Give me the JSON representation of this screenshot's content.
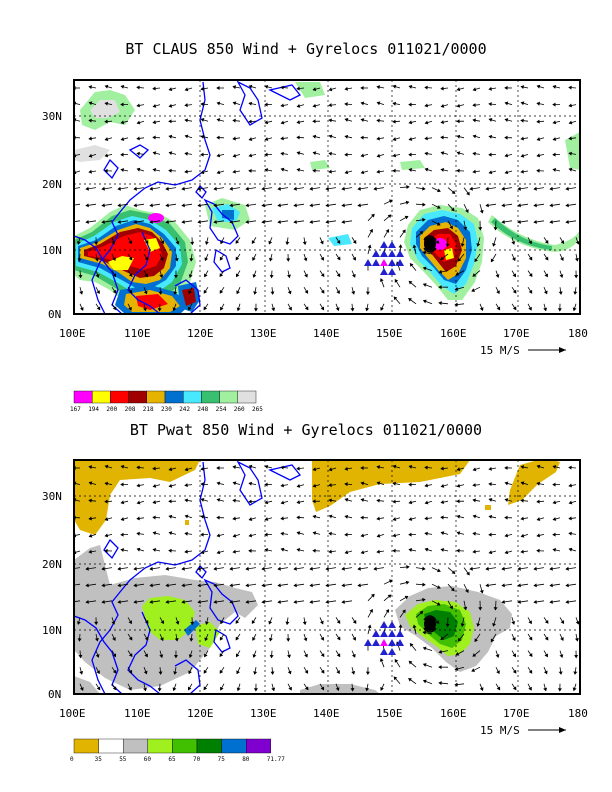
{
  "panels": [
    {
      "title": "BT CLAUS 850 Wind + Gyrelocs 011021/0000",
      "field": "CLAUS brightness temperature",
      "x_ticks": [
        "100E",
        "110E",
        "120E",
        "130E",
        "140E",
        "150E",
        "160E",
        "170E",
        "180"
      ],
      "y_ticks": [
        "0N",
        "10N",
        "20N",
        "30N"
      ],
      "ref_vector_label": "15 M/S",
      "legend": {
        "colors": [
          "#ff00ff",
          "#ffff00",
          "#ff0000",
          "#a00000",
          "#e6b400",
          "#0070d0",
          "#48e8ff",
          "#38c070",
          "#a0f0a0",
          "#e0e0e0"
        ],
        "labels": [
          "167",
          "194",
          "200",
          "208",
          "218",
          "230",
          "242",
          "248",
          "254",
          "260",
          "265"
        ]
      }
    },
    {
      "title": "BT Pwat 850 Wind + Gyrelocs 011021/0000",
      "field": "Precipitable water",
      "x_ticks": [
        "100E",
        "110E",
        "120E",
        "130E",
        "140E",
        "150E",
        "160E",
        "170E",
        "180"
      ],
      "y_ticks": [
        "0N",
        "10N",
        "20N",
        "30N"
      ],
      "ref_vector_label": "15 M/S",
      "legend": {
        "colors": [
          "#e0b400",
          "#ffffff",
          "#c0c0c0",
          "#a0f020",
          "#40c000",
          "#008000",
          "#0070d0",
          "#8000d0"
        ],
        "labels": [
          "0",
          "35",
          "55",
          "60",
          "65",
          "70",
          "75",
          "80",
          "71.77"
        ]
      }
    }
  ]
}
